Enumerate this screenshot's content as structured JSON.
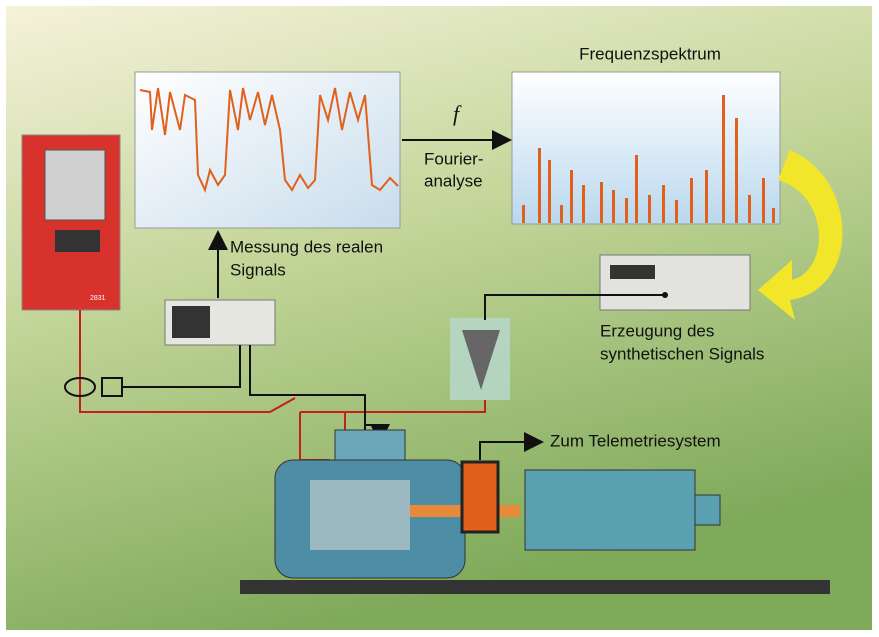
{
  "labels": {
    "spectrum_title": "Frequenzspektrum",
    "frequency_symbol": "f",
    "fourier_line1": "Fourier-",
    "fourier_line2": "analyse",
    "measurement_line1": "Messung des realen",
    "measurement_line2": "Signals",
    "generation_line1": "Erzeugung des",
    "generation_line2": "synthetischen Signals",
    "telemetry": "Zum Telemetriesystem",
    "drive_model": "2831"
  }
}
